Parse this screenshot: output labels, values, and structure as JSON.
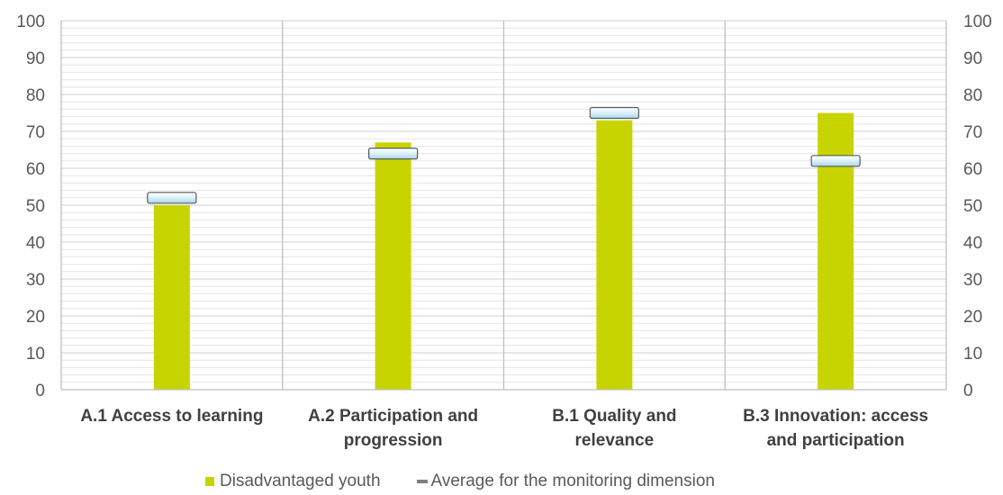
{
  "chart_data": {
    "type": "bar",
    "categories": [
      [
        "A.1 Access to learning"
      ],
      [
        "A.2 Participation and",
        "progression"
      ],
      [
        "B.1 Quality and",
        "relevance"
      ],
      [
        "B.3 Innovation: access",
        "and participation"
      ]
    ],
    "series": [
      {
        "name": "Disadvantaged youth",
        "type": "bar",
        "color": "#c8d400",
        "values": [
          50,
          67,
          73,
          75
        ]
      },
      {
        "name": "Average for the monitoring dimension",
        "type": "marker",
        "color": "#7f7f7f",
        "values": [
          52,
          64,
          75,
          62
        ]
      }
    ],
    "ylim": [
      0,
      100
    ],
    "yticks": [
      0,
      10,
      20,
      30,
      40,
      50,
      60,
      70,
      80,
      90,
      100
    ],
    "secondary_yticks": [
      0,
      10,
      20,
      30,
      40,
      50,
      60,
      70,
      80,
      90,
      100
    ],
    "grid": true,
    "legend_position": "bottom"
  }
}
